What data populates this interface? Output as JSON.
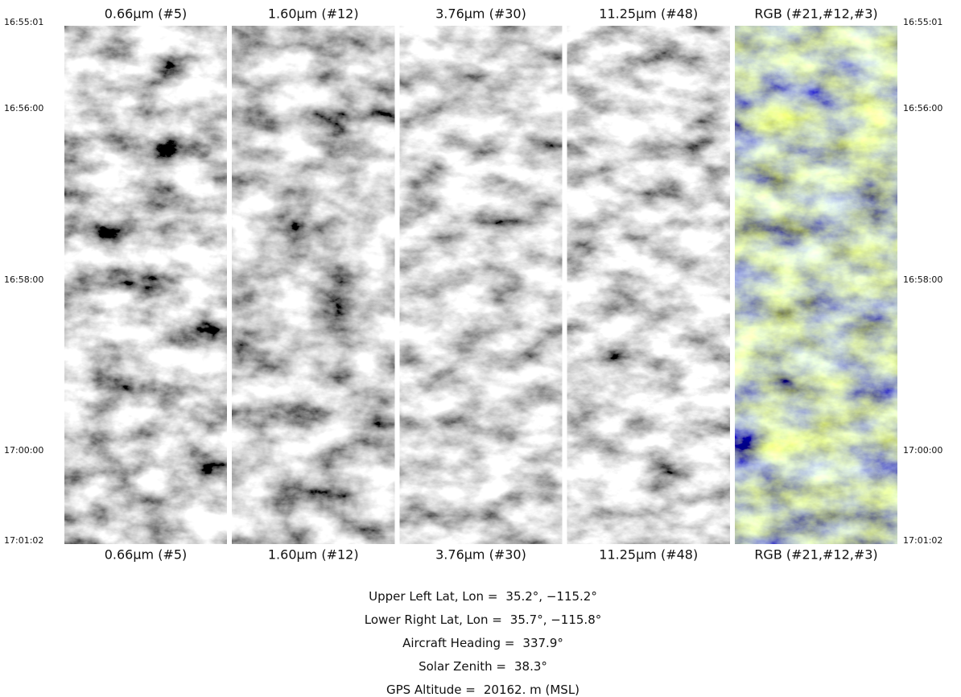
{
  "panels": [
    {
      "label": "0.66μm (#5)"
    },
    {
      "label": "1.60μm (#12)"
    },
    {
      "label": "3.76μm (#30)"
    },
    {
      "label": "11.25μm (#48)"
    },
    {
      "label": "RGB (#21,#12,#3)"
    }
  ],
  "times": [
    "16:55:01",
    "16:56:00",
    "16:58:00",
    "17:00:00",
    "17:01:02"
  ],
  "info": [
    {
      "label": "Upper Left Lat, Lon =",
      "value": "35.2°, −115.2°"
    },
    {
      "label": "Lower Right Lat, Lon =",
      "value": "35.7°, −115.8°"
    },
    {
      "label": "Aircraft Heading =",
      "value": "337.9°"
    },
    {
      "label": "Solar Zenith =",
      "value": "38.3°"
    },
    {
      "label": "GPS Altitude =",
      "value": "20162. m (MSL)"
    }
  ]
}
